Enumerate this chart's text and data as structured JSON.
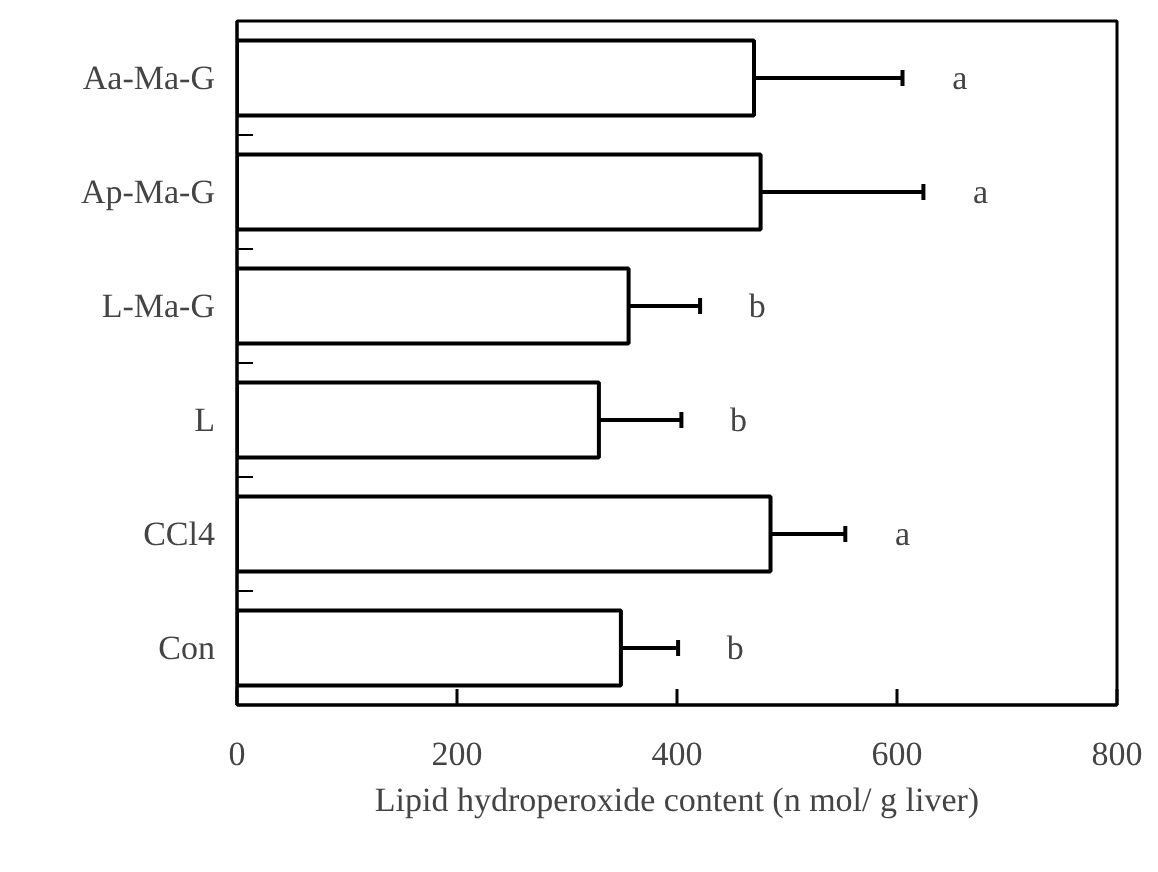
{
  "chart_data": {
    "type": "bar",
    "orientation": "horizontal",
    "xlabel": "Lipid hydroperoxide content (n mol/ g liver)",
    "categories": [
      "Aa-Ma-G",
      "Ap-Ma-G",
      "L-Ma-G",
      "L",
      "CCl4",
      "Con"
    ],
    "values": [
      470,
      476,
      356,
      329,
      485,
      349
    ],
    "errors": [
      [
        470,
        605
      ],
      [
        476,
        624
      ],
      [
        356,
        421
      ],
      [
        329,
        404
      ],
      [
        485,
        553
      ],
      [
        349,
        401
      ]
    ],
    "color": "#ffffff",
    "xlim": [
      0,
      800
    ],
    "xticks": [
      0,
      200,
      400,
      600,
      800
    ],
    "grid": false,
    "annotations": [
      "a",
      "a",
      "b",
      "b",
      "a",
      "b"
    ]
  }
}
